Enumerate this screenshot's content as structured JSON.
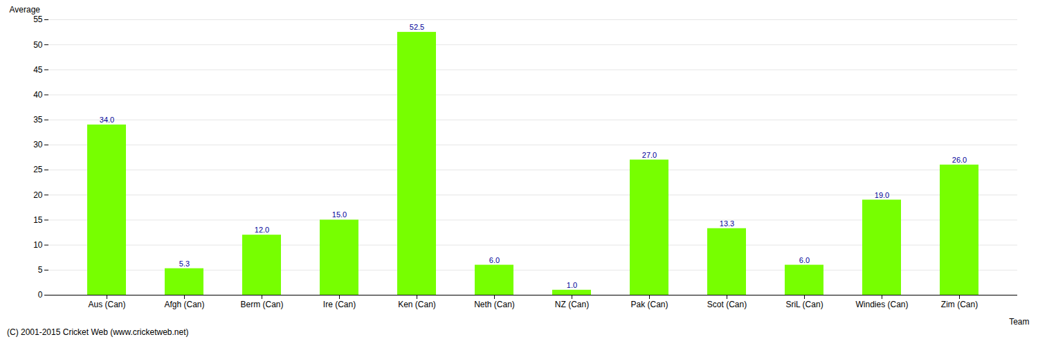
{
  "chart_data": {
    "type": "bar",
    "categories": [
      "Aus (Can)",
      "Afgh (Can)",
      "Berm (Can)",
      "Ire (Can)",
      "Ken (Can)",
      "Neth (Can)",
      "NZ (Can)",
      "Pak (Can)",
      "Scot (Can)",
      "SriL (Can)",
      "Windies (Can)",
      "Zim (Can)"
    ],
    "values": [
      34.0,
      5.3,
      12.0,
      15.0,
      52.5,
      6.0,
      1.0,
      27.0,
      13.3,
      6.0,
      19.0,
      26.0
    ],
    "value_labels": [
      "34.0",
      "5.3",
      "12.0",
      "15.0",
      "52.5",
      "6.0",
      "1.0",
      "27.0",
      "13.3",
      "6.0",
      "19.0",
      "26.0"
    ],
    "data_labels": true,
    "color": "#77FF00",
    "xlabel": "Team",
    "ylabel": "Average",
    "ylim": [
      0,
      55
    ],
    "yticks": [
      0,
      5,
      10,
      15,
      20,
      25,
      30,
      35,
      40,
      45,
      50,
      55
    ],
    "grid": true,
    "caption": "(C) 2001-2015 Cricket Web (www.cricketweb.net)"
  }
}
